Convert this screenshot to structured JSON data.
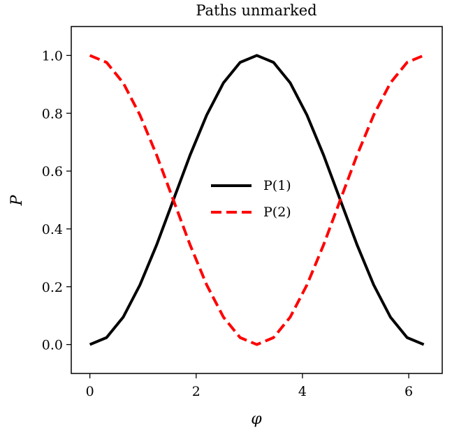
{
  "chart_data": {
    "type": "line",
    "title": "Paths unmarked",
    "xlabel": "φ",
    "ylabel": "P",
    "xlim": [
      -0.35,
      6.63
    ],
    "ylim": [
      -0.1,
      1.1
    ],
    "xticks": [
      0,
      2,
      4,
      6
    ],
    "yticks": [
      0.0,
      0.2,
      0.4,
      0.6,
      0.8,
      1.0
    ],
    "xtick_labels": [
      "0",
      "2",
      "4",
      "6"
    ],
    "ytick_labels": [
      "0.0",
      "0.2",
      "0.4",
      "0.6",
      "0.8",
      "1.0"
    ],
    "grid": false,
    "legend_position": "center",
    "series": [
      {
        "name": "P(1)",
        "color": "#000000",
        "style": "solid",
        "x": [
          0,
          0.314,
          0.628,
          0.942,
          1.257,
          1.571,
          1.885,
          2.199,
          2.513,
          2.827,
          3.142,
          3.456,
          3.77,
          4.084,
          4.398,
          4.712,
          5.027,
          5.341,
          5.655,
          5.969,
          6.283
        ],
        "values": [
          0,
          0.024,
          0.095,
          0.206,
          0.345,
          0.5,
          0.655,
          0.794,
          0.905,
          0.976,
          1.0,
          0.976,
          0.905,
          0.794,
          0.655,
          0.5,
          0.345,
          0.206,
          0.095,
          0.024,
          0
        ]
      },
      {
        "name": "P(2)",
        "color": "#ff0000",
        "style": "dashed",
        "x": [
          0,
          0.314,
          0.628,
          0.942,
          1.257,
          1.571,
          1.885,
          2.199,
          2.513,
          2.827,
          3.142,
          3.456,
          3.77,
          4.084,
          4.398,
          4.712,
          5.027,
          5.341,
          5.655,
          5.969,
          6.283
        ],
        "values": [
          1.0,
          0.976,
          0.905,
          0.794,
          0.655,
          0.5,
          0.345,
          0.206,
          0.095,
          0.024,
          0,
          0.024,
          0.095,
          0.206,
          0.345,
          0.5,
          0.655,
          0.794,
          0.905,
          0.976,
          1.0
        ]
      }
    ]
  }
}
